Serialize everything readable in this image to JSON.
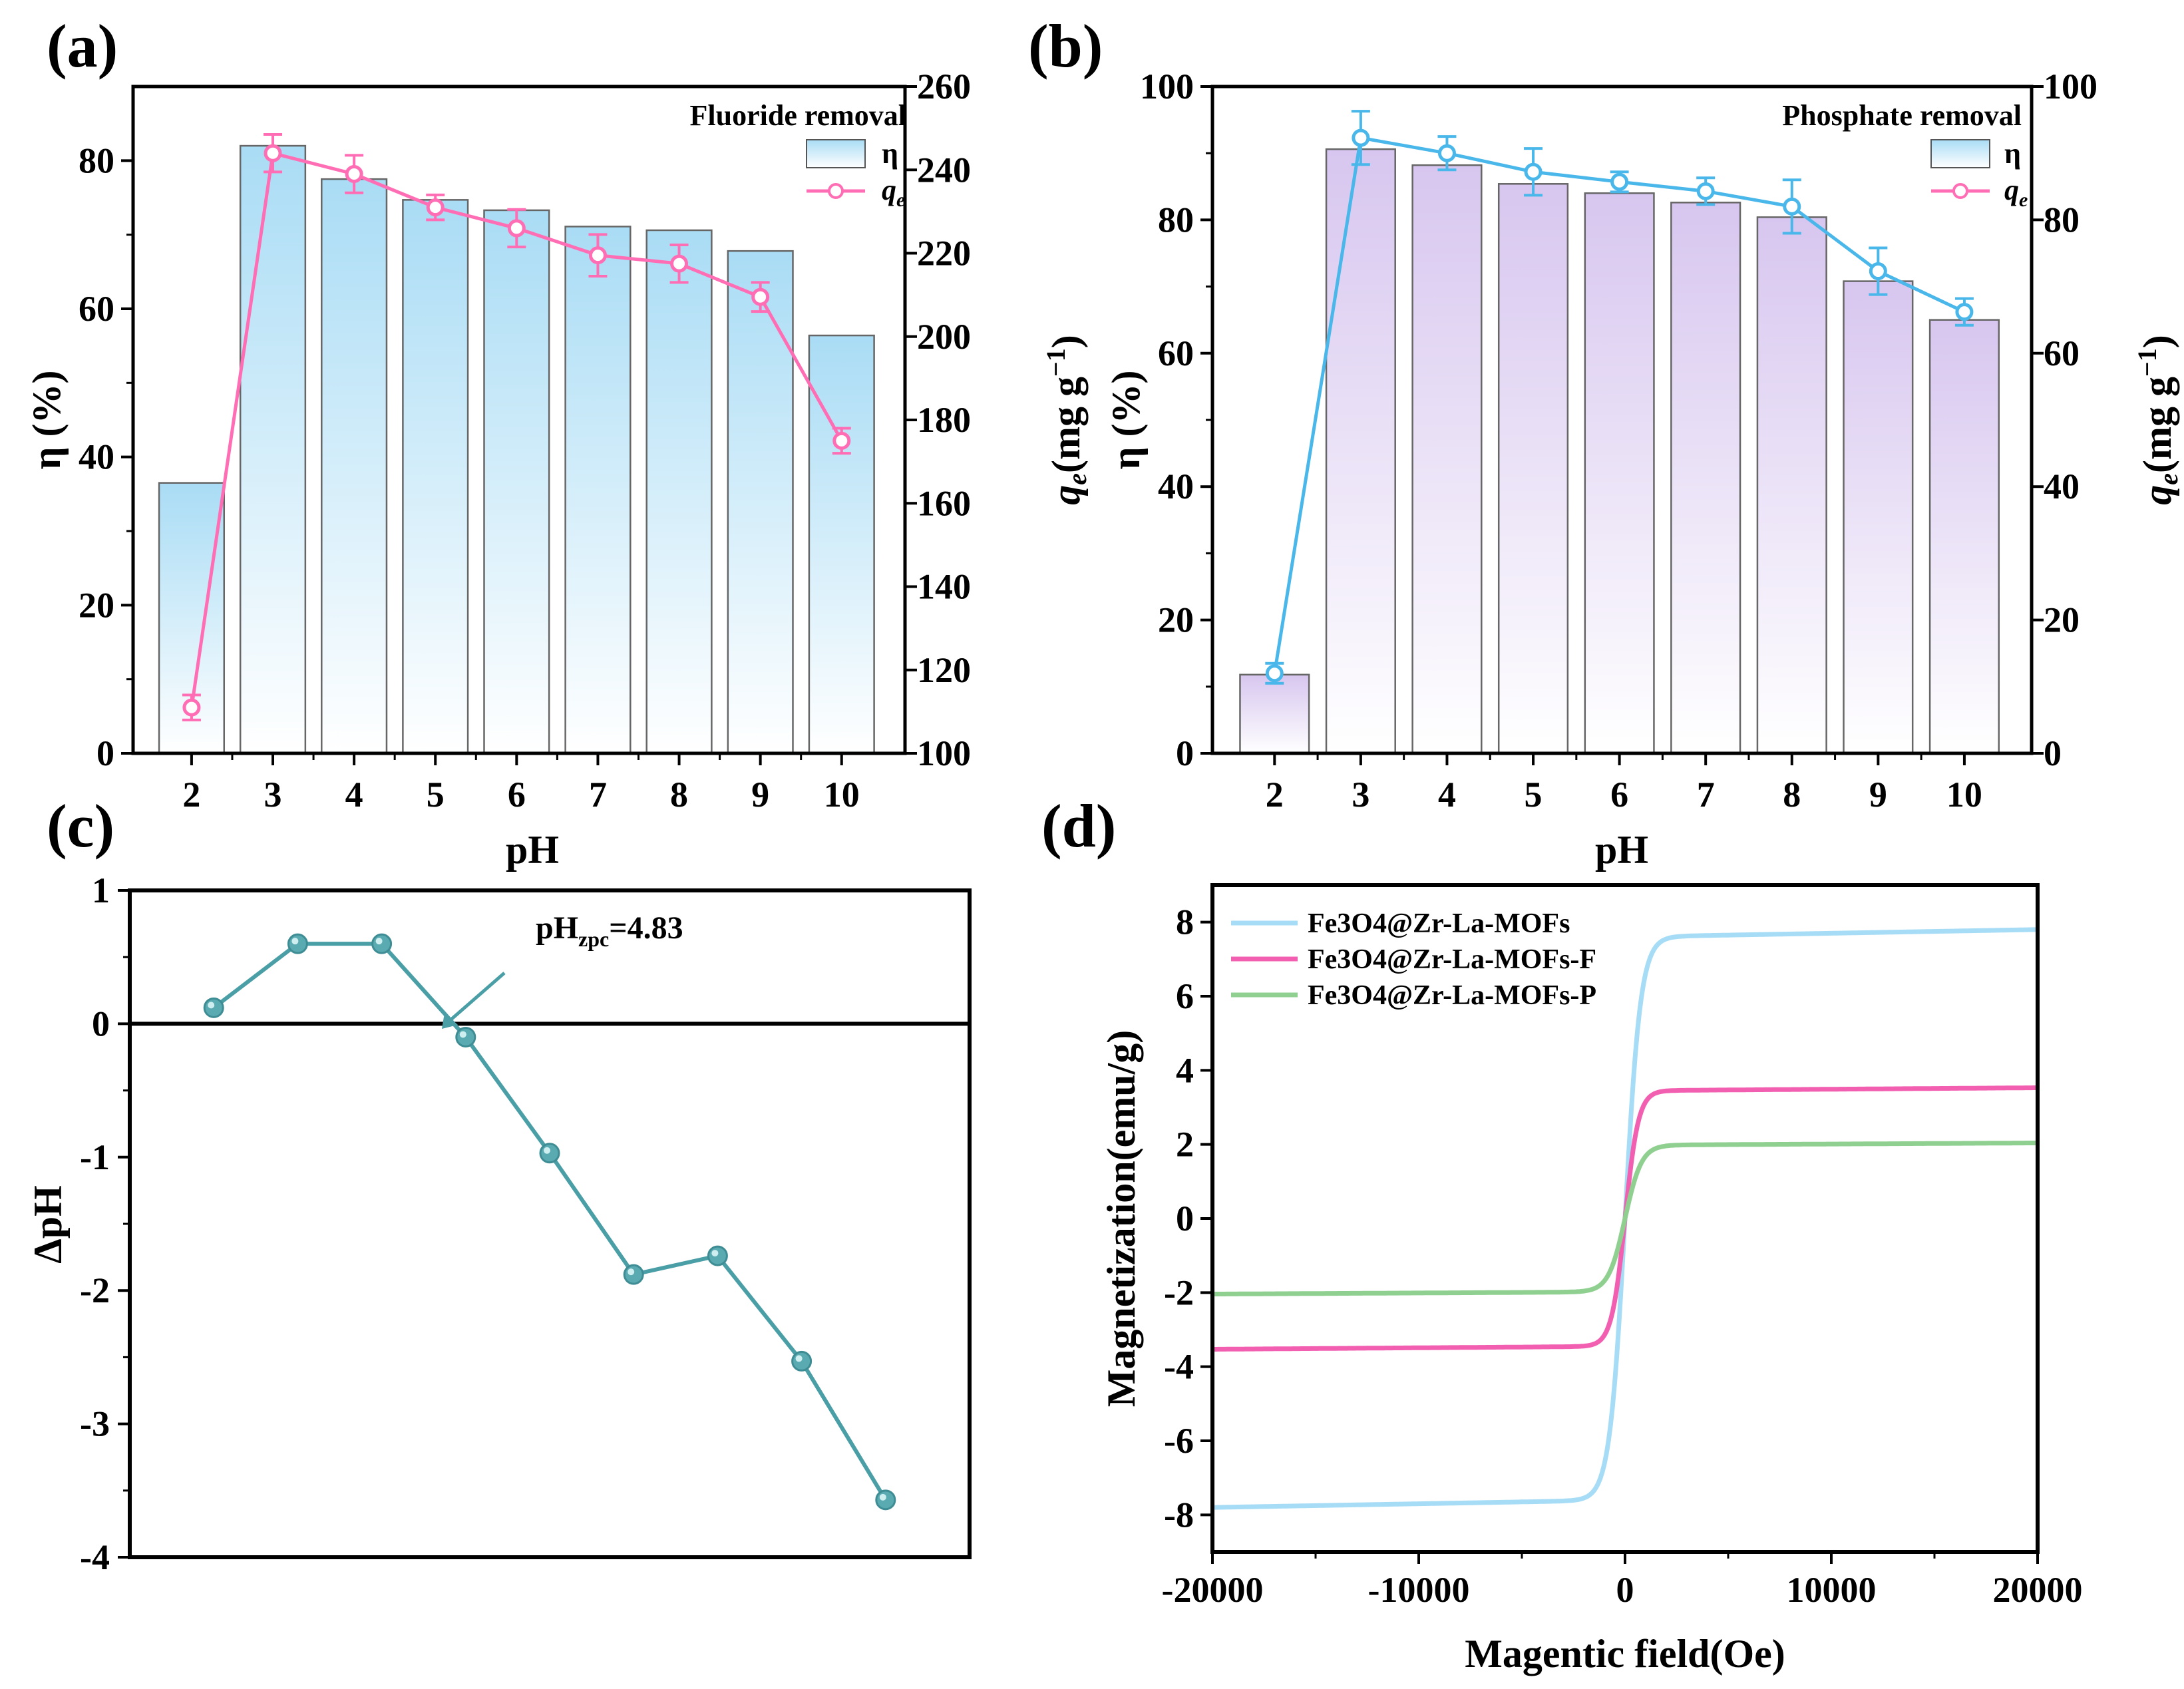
{
  "colors": {
    "blue_bar": "#a9dcf5",
    "purple_bar": "#d7c6ef",
    "pink_line": "#ff6eb4",
    "blue_line": "#4ab7ea",
    "teal": "#4a9ea6",
    "light_blue": "#a6dcf5",
    "magenta": "#f25fb0",
    "green": "#8fd090"
  },
  "chart_data": [
    {
      "id": "a",
      "panel_label": "(a)",
      "type": "bar",
      "title": "Fluoride removal",
      "xlabel": "pH",
      "ylabel": "η (%)",
      "y2label_sym": "q",
      "y2label_sub": "e",
      "y2label_unit": "(mg g",
      "y2label_sup": "−1",
      "y2label_close": ")",
      "categories": [
        "2",
        "3",
        "4",
        "5",
        "6",
        "7",
        "8",
        "9",
        "10"
      ],
      "ylim": [
        0,
        90
      ],
      "yticks": [
        "0",
        "20",
        "40",
        "60",
        "80"
      ],
      "y2lim": [
        100,
        260
      ],
      "y2ticks": [
        "100",
        "120",
        "140",
        "160",
        "180",
        "200",
        "220",
        "240",
        "260"
      ],
      "bar_series": {
        "name": "η",
        "values": [
          36.5,
          82,
          77.5,
          74.7,
          73.3,
          71.1,
          70.6,
          67.8,
          56.4
        ]
      },
      "line_series": {
        "name": "q",
        "name_sub": "e",
        "values": [
          111,
          244,
          239,
          231,
          226,
          219.5,
          217.5,
          209.5,
          175
        ],
        "errors": [
          3,
          4.5,
          4.5,
          3,
          4.5,
          5,
          4.5,
          3.5,
          3
        ]
      }
    },
    {
      "id": "b",
      "panel_label": "(b)",
      "type": "bar",
      "title": "Phosphate removal",
      "xlabel": "pH",
      "ylabel": "η (%)",
      "y2label_sym": "q",
      "y2label_sub": "e",
      "y2label_unit": "(mg g",
      "y2label_sup": "−1",
      "y2label_close": ")",
      "categories": [
        "2",
        "3",
        "4",
        "5",
        "6",
        "7",
        "8",
        "9",
        "10"
      ],
      "ylim": [
        0,
        100
      ],
      "yticks": [
        "0",
        "20",
        "40",
        "60",
        "80",
        "100"
      ],
      "y2lim": [
        0,
        100
      ],
      "y2ticks": [
        "0",
        "20",
        "40",
        "60",
        "80",
        "100"
      ],
      "bar_series": {
        "name": "η",
        "values": [
          11.8,
          90.6,
          88.2,
          85.4,
          84,
          82.6,
          80.4,
          70.8,
          65
        ]
      },
      "line_series": {
        "name": "q",
        "name_sub": "e",
        "values": [
          12,
          92.3,
          90,
          87.2,
          85.7,
          84.3,
          82,
          72.3,
          66.2
        ],
        "errors": [
          1.5,
          4,
          2.5,
          3.5,
          1.5,
          2,
          4,
          3.5,
          2
        ]
      }
    },
    {
      "id": "c",
      "panel_label": "(c)",
      "type": "line",
      "ylabel": "ΔpH",
      "annotation": "pH",
      "annotation_sub": "zpc",
      "annotation_value": "=4.83",
      "x": [
        2,
        3,
        4,
        5,
        6,
        7,
        8,
        9,
        10
      ],
      "y": [
        0.12,
        0.6,
        0.6,
        -0.1,
        -0.97,
        -1.88,
        -1.74,
        -2.53,
        -3.57
      ],
      "xlim": [
        1,
        11
      ],
      "ylim": [
        -4,
        1
      ],
      "yticks": [
        "-4",
        "-3",
        "-2",
        "-1",
        "0",
        "1"
      ]
    },
    {
      "id": "d",
      "panel_label": "(d)",
      "type": "line",
      "xlabel": "Magentic field(Oe)",
      "ylabel": "Magnetization(emu/g)",
      "xlim": [
        -20000,
        20000
      ],
      "ylim": [
        -9,
        9
      ],
      "xticks": [
        "-20000",
        "-10000",
        "0",
        "10000",
        "20000"
      ],
      "yticks": [
        "-8",
        "-6",
        "-4",
        "-2",
        "0",
        "2",
        "4",
        "6",
        "8"
      ],
      "series": [
        {
          "name": "Fe3O4@Zr-La-MOFs",
          "ms": 7.6,
          "h0": 750,
          "slope": 1e-05
        },
        {
          "name": "Fe3O4@Zr-La-MOFs-F",
          "ms": 3.45,
          "h0": 650,
          "slope": 4e-06
        },
        {
          "name": "Fe3O4@Zr-La-MOFs-P",
          "ms": 1.98,
          "h0": 800,
          "slope": 3e-06
        }
      ]
    }
  ]
}
